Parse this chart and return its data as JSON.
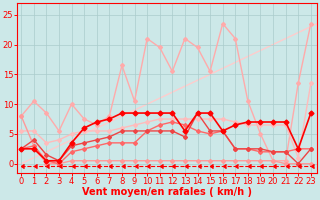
{
  "xlabel": "Vent moyen/en rafales ( km/h )",
  "x": [
    0,
    1,
    2,
    3,
    4,
    5,
    6,
    7,
    8,
    9,
    10,
    11,
    12,
    13,
    14,
    15,
    16,
    17,
    18,
    19,
    20,
    21,
    22,
    23
  ],
  "lines": [
    {
      "y": [
        8.0,
        10.5,
        8.5,
        5.5,
        10.0,
        7.5,
        6.5,
        8.0,
        16.5,
        10.5,
        21.0,
        19.5,
        15.5,
        21.0,
        19.5,
        15.5,
        23.5,
        21.0,
        10.5,
        5.0,
        0.5,
        0.5,
        13.5,
        23.5
      ],
      "color": "#ffaaaa",
      "lw": 1.0,
      "marker": "D",
      "ms": 2.0,
      "zorder": 2
    },
    {
      "y": [
        5.5,
        5.5,
        3.5,
        4.0,
        5.0,
        5.5,
        5.5,
        5.5,
        6.0,
        6.5,
        7.0,
        7.5,
        7.5,
        7.5,
        7.5,
        7.5,
        7.5,
        7.0,
        6.5,
        6.5,
        6.5,
        6.5,
        1.0,
        13.5
      ],
      "color": "#ffbbbb",
      "lw": 1.0,
      "marker": "D",
      "ms": 2.0,
      "zorder": 2
    },
    {
      "y": [
        2.5,
        3.0,
        0.5,
        0.0,
        2.0,
        2.5,
        3.0,
        3.5,
        3.5,
        3.5,
        5.5,
        6.5,
        7.0,
        6.5,
        5.5,
        5.0,
        5.5,
        2.5,
        2.5,
        2.0,
        2.0,
        2.0,
        2.5,
        2.5
      ],
      "color": "#ff6666",
      "lw": 1.0,
      "marker": "D",
      "ms": 2.0,
      "zorder": 3
    },
    {
      "y": [
        2.5,
        4.0,
        1.5,
        0.5,
        3.0,
        3.5,
        4.0,
        4.5,
        5.5,
        5.5,
        5.5,
        5.5,
        5.5,
        4.5,
        8.5,
        5.5,
        5.5,
        2.5,
        2.5,
        2.5,
        2.0,
        2.0,
        0.0,
        2.5
      ],
      "color": "#ee4444",
      "lw": 1.0,
      "marker": "D",
      "ms": 2.0,
      "zorder": 3
    },
    {
      "y": [
        8.0,
        3.0,
        0.0,
        0.0,
        0.5,
        0.5,
        0.5,
        0.5,
        0.5,
        0.5,
        0.5,
        0.5,
        0.5,
        0.5,
        0.5,
        0.5,
        0.5,
        0.5,
        0.5,
        0.5,
        0.5,
        0.0,
        0.0,
        0.0
      ],
      "color": "#ff9999",
      "lw": 1.0,
      "marker": "D",
      "ms": 2.0,
      "zorder": 2
    },
    {
      "y": [
        2.5,
        2.5,
        0.5,
        0.5,
        3.5,
        6.0,
        7.0,
        7.5,
        8.5,
        8.5,
        8.5,
        8.5,
        8.5,
        5.5,
        8.5,
        8.5,
        5.5,
        6.5,
        7.0,
        7.0,
        7.0,
        7.0,
        2.5,
        8.5
      ],
      "color": "#ff0000",
      "lw": 1.2,
      "marker": "D",
      "ms": 2.5,
      "zorder": 4
    },
    {
      "y": [
        -0.3,
        -0.3,
        -0.3,
        -0.3,
        -0.3,
        -0.3,
        -0.3,
        -0.3,
        -0.3,
        -0.3,
        -0.3,
        -0.3,
        -0.3,
        -0.3,
        -0.3,
        -0.3,
        -0.3,
        -0.3,
        -0.3,
        -0.3,
        -0.3,
        -0.3,
        -0.3,
        -0.3
      ],
      "color": "#ff0000",
      "lw": 0.8,
      "marker": 4,
      "ms": 3,
      "zorder": 5,
      "linestyle": "--"
    }
  ],
  "diagonal_line": {
    "x": [
      0,
      25
    ],
    "y": [
      0,
      25
    ],
    "color": "#ffcccc",
    "lw": 1.0,
    "zorder": 1
  },
  "bg_color": "#cce8e8",
  "grid_color": "#aacccc",
  "ylim": [
    -1.5,
    27
  ],
  "xlim": [
    -0.3,
    23.5
  ],
  "yticks": [
    0,
    5,
    10,
    15,
    20,
    25
  ],
  "xticks": [
    0,
    1,
    2,
    3,
    4,
    5,
    6,
    7,
    8,
    9,
    10,
    11,
    12,
    13,
    14,
    15,
    16,
    17,
    18,
    19,
    20,
    21,
    22,
    23
  ],
  "tick_color": "#ff0000",
  "label_color": "#ff0000",
  "label_fontsize": 7,
  "tick_fontsize": 6
}
